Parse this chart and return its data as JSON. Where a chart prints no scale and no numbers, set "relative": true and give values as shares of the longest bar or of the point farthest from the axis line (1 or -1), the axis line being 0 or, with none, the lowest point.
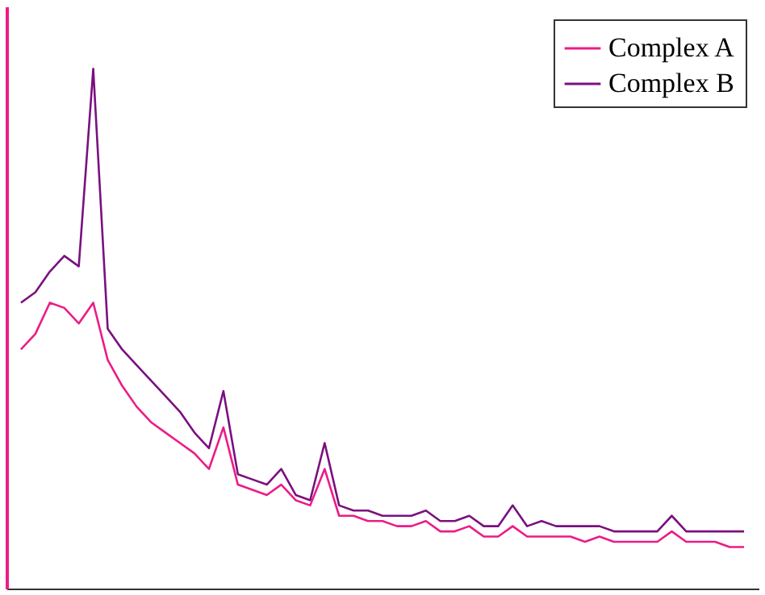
{
  "chart_data": {
    "type": "line",
    "relative": true,
    "legend": "top right",
    "grid": false,
    "tick_labels": false,
    "categories": [
      null,
      null,
      null,
      null,
      null,
      null,
      null,
      null,
      null,
      null,
      null,
      null,
      null,
      null,
      null,
      null,
      null,
      null,
      null,
      null,
      null,
      null,
      null,
      null,
      null,
      null,
      null,
      null,
      null,
      null,
      null,
      null,
      null,
      null,
      null,
      null,
      null,
      null,
      null,
      null,
      null,
      null,
      null,
      null,
      null,
      null,
      null,
      null,
      null,
      null,
      null
    ],
    "series": [
      {
        "name": "Complex A",
        "color": "#ec1c86",
        "values": [
          0.46,
          0.49,
          0.55,
          0.54,
          0.51,
          0.55,
          0.44,
          0.39,
          0.35,
          0.32,
          0.3,
          0.28,
          0.26,
          0.23,
          0.31,
          0.2,
          0.19,
          0.18,
          0.2,
          0.17,
          0.16,
          0.23,
          0.14,
          0.14,
          0.13,
          0.13,
          0.12,
          0.12,
          0.13,
          0.11,
          0.11,
          0.12,
          0.1,
          0.1,
          0.12,
          0.1,
          0.1,
          0.1,
          0.1,
          0.09,
          0.1,
          0.09,
          0.09,
          0.09,
          0.09,
          0.11,
          0.09,
          0.09,
          0.09,
          0.08,
          0.08
        ]
      },
      {
        "name": "Complex B",
        "color": "#7a1080",
        "values": [
          0.55,
          0.57,
          0.61,
          0.64,
          0.62,
          1,
          0.5,
          0.46,
          0.43,
          0.4,
          0.37,
          0.34,
          0.3,
          0.27,
          0.38,
          0.22,
          0.21,
          0.2,
          0.23,
          0.18,
          0.17,
          0.28,
          0.16,
          0.15,
          0.15,
          0.14,
          0.14,
          0.14,
          0.15,
          0.13,
          0.13,
          0.14,
          0.12,
          0.12,
          0.16,
          0.12,
          0.13,
          0.12,
          0.12,
          0.12,
          0.12,
          0.11,
          0.11,
          0.11,
          0.11,
          0.14,
          0.11,
          0.11,
          0.11,
          0.11,
          0.11
        ]
      }
    ]
  }
}
